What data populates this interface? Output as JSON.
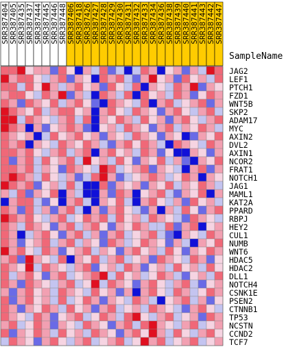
{
  "chart_data": {
    "type": "heatmap",
    "row_axis_label": "SampleName",
    "columns": [
      {
        "name": "SRR387404",
        "group": "white"
      },
      {
        "name": "SRR387405",
        "group": "white"
      },
      {
        "name": "SRR387435",
        "group": "white"
      },
      {
        "name": "SRR387437",
        "group": "white"
      },
      {
        "name": "SRR387444",
        "group": "white"
      },
      {
        "name": "SRR387445",
        "group": "white"
      },
      {
        "name": "SRR387446",
        "group": "white"
      },
      {
        "name": "SRR387448",
        "group": "white"
      },
      {
        "name": "SRR387406",
        "group": "gold"
      },
      {
        "name": "SRR387418",
        "group": "gold"
      },
      {
        "name": "SRR387426",
        "group": "gold"
      },
      {
        "name": "SRR387427",
        "group": "gold"
      },
      {
        "name": "SRR387428",
        "group": "gold"
      },
      {
        "name": "SRR387429",
        "group": "gold"
      },
      {
        "name": "SRR387430",
        "group": "gold"
      },
      {
        "name": "SRR387431",
        "group": "gold"
      },
      {
        "name": "SRR387432",
        "group": "gold"
      },
      {
        "name": "SRR387433",
        "group": "gold"
      },
      {
        "name": "SRR387434",
        "group": "gold"
      },
      {
        "name": "SRR387436",
        "group": "gold"
      },
      {
        "name": "SRR387438",
        "group": "gold"
      },
      {
        "name": "SRR387439",
        "group": "gold"
      },
      {
        "name": "SRR387440",
        "group": "gold"
      },
      {
        "name": "SRR387441",
        "group": "gold"
      },
      {
        "name": "SRR387443",
        "group": "gold"
      },
      {
        "name": "SRR387442",
        "group": "gold"
      },
      {
        "name": "SRR387447",
        "group": "gold"
      }
    ],
    "rows": [
      "JAG2",
      "LEF1",
      "PTCH1",
      "FZD1",
      "WNT5B",
      "SKP2",
      "ADAM17",
      "MYC",
      "AXIN2",
      "DVL2",
      "AXIN1",
      "NCOR2",
      "FRAT1",
      "NOTCH1",
      "JAG1",
      "MAML1",
      "KAT2A",
      "PPARD",
      "RBPJ",
      "HEY2",
      "CUL1",
      "NUMB",
      "WNT6",
      "HDAC5",
      "HDAC2",
      "DLL1",
      "NOTCH4",
      "CSNK1E",
      "PSEN2",
      "CTNNB1",
      "TP53",
      "NCSTN",
      "CCND2",
      "TCF7"
    ],
    "values": [
      [
        2,
        2,
        3,
        0,
        1,
        1,
        -2,
        2,
        0,
        -3,
        1,
        -1,
        2,
        -2,
        -1,
        -3,
        -1,
        2,
        1,
        -3,
        0,
        1,
        -2,
        1,
        -1,
        3,
        2
      ],
      [
        3,
        1,
        2,
        2,
        0,
        -1,
        1,
        2,
        -2,
        1,
        0,
        -3,
        2,
        1,
        2,
        -1,
        -2,
        1,
        3,
        0,
        1,
        -2,
        2,
        0,
        1,
        -1,
        2
      ],
      [
        2,
        2,
        -1,
        2,
        0,
        3,
        1,
        -1,
        1,
        2,
        0,
        1,
        -2,
        2,
        0,
        -1,
        2,
        -3,
        1,
        0,
        -1,
        2,
        1,
        3,
        -2,
        1,
        0
      ],
      [
        1,
        2,
        2,
        0,
        -1,
        2,
        1,
        3,
        -2,
        1,
        -1,
        -3,
        2,
        1,
        -1,
        2,
        -3,
        2,
        0,
        1,
        -1,
        2,
        1,
        -2,
        0,
        2,
        1
      ],
      [
        2,
        1,
        -2,
        2,
        1,
        0,
        2,
        -1,
        1,
        2,
        0,
        -2,
        -3,
        2,
        1,
        0,
        -1,
        2,
        -3,
        1,
        2,
        -1,
        0,
        1,
        2,
        -2,
        1
      ],
      [
        3,
        2,
        1,
        0,
        2,
        -1,
        1,
        2,
        2,
        0,
        1,
        -3,
        1,
        2,
        0,
        -1,
        2,
        1,
        0,
        -2,
        1,
        2,
        0,
        -1,
        1,
        2,
        -1
      ],
      [
        3,
        3,
        -1,
        2,
        1,
        0,
        -1,
        1,
        2,
        -1,
        2,
        -3,
        1,
        0,
        2,
        1,
        -1,
        2,
        0,
        1,
        -2,
        1,
        2,
        0,
        -1,
        1,
        2
      ],
      [
        3,
        2,
        1,
        -3,
        1,
        -2,
        0,
        1,
        2,
        1,
        -2,
        -3,
        0,
        1,
        -1,
        2,
        1,
        0,
        -2,
        1,
        2,
        -1,
        1,
        0,
        2,
        1,
        -1
      ],
      [
        2,
        1,
        0,
        1,
        -3,
        -1,
        2,
        0,
        1,
        2,
        0,
        1,
        -2,
        1,
        0,
        -1,
        2,
        1,
        0,
        -2,
        1,
        0,
        -3,
        -2,
        1,
        0,
        2
      ],
      [
        2,
        1,
        2,
        -3,
        1,
        0,
        -1,
        2,
        1,
        0,
        2,
        1,
        -1,
        -2,
        1,
        2,
        0,
        2,
        1,
        -1,
        -3,
        2,
        1,
        0,
        -1,
        2,
        1
      ],
      [
        2,
        2,
        1,
        2,
        0,
        -1,
        1,
        2,
        -1,
        1,
        2,
        -3,
        1,
        2,
        0,
        1,
        -1,
        2,
        1,
        -2,
        0,
        -3,
        -3,
        1,
        0,
        -2,
        1
      ],
      [
        2,
        -2,
        1,
        2,
        -1,
        2,
        0,
        1,
        2,
        -1,
        3,
        0,
        1,
        -1,
        2,
        0,
        -2,
        1,
        0,
        2,
        -1,
        1,
        -2,
        -3,
        1,
        0,
        2
      ],
      [
        2,
        2,
        1,
        2,
        -1,
        1,
        0,
        -2,
        2,
        1,
        0,
        -1,
        3,
        2,
        -1,
        0,
        1,
        2,
        -2,
        1,
        0,
        -1,
        -3,
        1,
        2,
        -2,
        1
      ],
      [
        2,
        3,
        2,
        1,
        -1,
        2,
        0,
        -1,
        1,
        -2,
        -1,
        2,
        3,
        1,
        -2,
        -1,
        0,
        1,
        2,
        1,
        -1,
        0,
        2,
        1,
        -3,
        1,
        0
      ],
      [
        3,
        2,
        1,
        2,
        -2,
        0,
        1,
        -1,
        2,
        -1,
        -3,
        -3,
        2,
        -2,
        1,
        0,
        1,
        -2,
        1,
        0,
        2,
        -1,
        1,
        0,
        2,
        1,
        -1
      ],
      [
        1,
        -1,
        2,
        -2,
        1,
        0,
        2,
        -3,
        1,
        -1,
        -3,
        -3,
        1,
        -2,
        2,
        1,
        -3,
        0,
        1,
        2,
        -1,
        -2,
        1,
        0,
        2,
        -3,
        1
      ],
      [
        -3,
        1,
        2,
        2,
        -1,
        -2,
        0,
        -3,
        1,
        2,
        -1,
        -3,
        1,
        0,
        2,
        -1,
        -3,
        1,
        2,
        0,
        -1,
        1,
        -2,
        2,
        0,
        1,
        -1
      ],
      [
        2,
        1,
        -2,
        2,
        -1,
        1,
        -2,
        1,
        2,
        -1,
        -3,
        1,
        -2,
        1,
        2,
        0,
        -1,
        -2,
        1,
        -3,
        1,
        -1,
        2,
        0,
        -2,
        1,
        2
      ],
      [
        3,
        2,
        1,
        2,
        0,
        -1,
        1,
        2,
        -1,
        0,
        2,
        1,
        2,
        -1,
        2,
        0,
        1,
        -1,
        2,
        1,
        0,
        -1,
        -2,
        2,
        1,
        0,
        -1
      ],
      [
        2,
        1,
        -1,
        2,
        1,
        0,
        -2,
        1,
        2,
        -1,
        1,
        2,
        0,
        -2,
        1,
        0,
        2,
        1,
        -1,
        -1,
        2,
        -2,
        1,
        2,
        -3,
        0,
        1
      ],
      [
        2,
        1,
        -3,
        -1,
        1,
        2,
        0,
        -2,
        1,
        2,
        -1,
        1,
        -2,
        1,
        2,
        -1,
        0,
        1,
        2,
        -1,
        -2,
        -3,
        1,
        0,
        -1,
        2,
        1
      ],
      [
        2,
        1,
        -2,
        0,
        1,
        2,
        -1,
        1,
        2,
        -1,
        1,
        0,
        -2,
        2,
        1,
        -1,
        0,
        2,
        1,
        0,
        -2,
        1,
        -1,
        -3,
        1,
        0,
        2
      ],
      [
        3,
        1,
        2,
        0,
        -1,
        2,
        1,
        -2,
        0,
        1,
        2,
        -1,
        1,
        0,
        -2,
        1,
        2,
        0,
        1,
        -1,
        2,
        0,
        -2,
        1,
        0,
        2,
        1
      ],
      [
        1,
        2,
        -2,
        3,
        1,
        0,
        -1,
        2,
        -3,
        1,
        0,
        2,
        -1,
        1,
        2,
        -1,
        0,
        1,
        -2,
        2,
        1,
        0,
        -1,
        2,
        1,
        -2,
        0
      ],
      [
        2,
        1,
        0,
        3,
        -1,
        2,
        1,
        0,
        -1,
        1,
        2,
        -2,
        0,
        1,
        -1,
        2,
        1,
        -2,
        0,
        1,
        -1,
        2,
        0,
        1,
        -1,
        2,
        0
      ],
      [
        2,
        -1,
        1,
        2,
        0,
        -2,
        1,
        2,
        -1,
        0,
        1,
        2,
        3,
        -1,
        2,
        0,
        1,
        -1,
        0,
        2,
        1,
        -1,
        -2,
        0,
        1,
        -1,
        2
      ],
      [
        2,
        1,
        -2,
        2,
        1,
        0,
        -1,
        1,
        2,
        -1,
        0,
        3,
        -1,
        2,
        1,
        0,
        -2,
        1,
        2,
        0,
        -1,
        1,
        2,
        -1,
        -2,
        0,
        1
      ],
      [
        1,
        -2,
        1,
        2,
        0,
        1,
        -1,
        2,
        1,
        0,
        -1,
        2,
        0,
        1,
        -2,
        1,
        -3,
        1,
        2,
        0,
        -1,
        2,
        1,
        -1,
        0,
        2,
        1
      ],
      [
        2,
        -2,
        1,
        2,
        0,
        1,
        -1,
        2,
        -1,
        0,
        2,
        1,
        -2,
        1,
        0,
        -1,
        2,
        1,
        -1,
        -3,
        0,
        1,
        2,
        -1,
        1,
        -2,
        0
      ],
      [
        2,
        1,
        -2,
        1,
        0,
        2,
        1,
        -1,
        2,
        0,
        1,
        -2,
        1,
        2,
        -1,
        0,
        1,
        -1,
        2,
        1,
        0,
        -1,
        -2,
        1,
        2,
        0,
        -1
      ],
      [
        2,
        1,
        0,
        -1,
        2,
        1,
        -2,
        0,
        1,
        2,
        -1,
        0,
        2,
        1,
        -1,
        2,
        3,
        0,
        -1,
        1,
        2,
        -1,
        0,
        1,
        -2,
        2,
        1
      ],
      [
        1,
        2,
        -1,
        0,
        2,
        1,
        -2,
        1,
        0,
        -1,
        2,
        1,
        0,
        -2,
        1,
        2,
        -1,
        2,
        3,
        1,
        0,
        -1,
        1,
        2,
        -1,
        0,
        1
      ],
      [
        2,
        -2,
        1,
        0,
        2,
        1,
        -1,
        2,
        0,
        1,
        -1,
        2,
        1,
        0,
        -2,
        1,
        2,
        0,
        3,
        1,
        -1,
        2,
        0,
        -1,
        1,
        2,
        0
      ],
      [
        -1,
        2,
        1,
        0,
        -2,
        1,
        2,
        0,
        -1,
        1,
        2,
        -1,
        0,
        1,
        2,
        -1,
        0,
        3,
        1,
        2,
        -1,
        0,
        1,
        2,
        -1,
        0,
        1
      ]
    ],
    "value_scale": {
      "-3": "#1010d8",
      "-2": "#6a6ae6",
      "-1": "#c4c4f0",
      "0": "#f6d4e2",
      "1": "#f2a0b2",
      "2": "#f06878",
      "3": "#e01020"
    },
    "group_colors": {
      "white": "#ffffff",
      "gold": "#ffcc00"
    },
    "grid": true,
    "legend": "none"
  }
}
